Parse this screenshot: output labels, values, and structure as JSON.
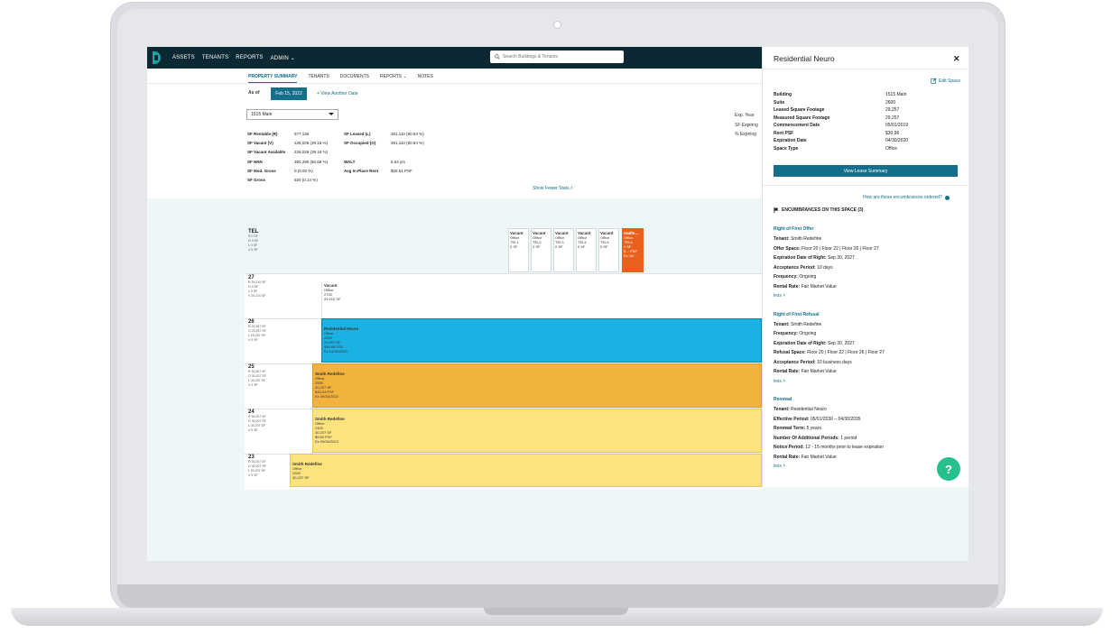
{
  "nav": {
    "items": [
      "ASSETS",
      "TENANTS",
      "REPORTS",
      "ADMIN"
    ],
    "search_placeholder": "Search Buildings & Tenants"
  },
  "tabs": [
    "PROPERTY SUMMARY",
    "TENANTS",
    "DOCUMENTS",
    "REPORTS",
    "NOTES"
  ],
  "asof": {
    "label": "As of",
    "date": "Feb 15, 2022",
    "view_another": "+ View Another Date"
  },
  "building_select": "1515 Main",
  "stats_left": [
    {
      "k": "SF Rentable (R)",
      "v": "577,136"
    },
    {
      "k": "SF Vacant (V)",
      "v": "226,026 (39.16 %)"
    },
    {
      "k": "SF Vacant Available",
      "v": "226,026 (39.16 %)"
    },
    {
      "k": "SF NNN",
      "v": "350,290 (60.69 %)"
    },
    {
      "k": "SF Mod. Gross",
      "v": "0 (0.00 %)"
    },
    {
      "k": "SF Gross",
      "v": "820 (0.14 %)"
    }
  ],
  "stats_right": [
    {
      "k": "SF Leased (L)",
      "v": "351,110 (60.84 %)"
    },
    {
      "k": "SF Occupied (O)",
      "v": "351,110 (60.84 %)"
    },
    {
      "k": "WALT",
      "v": "6.54 yrs"
    },
    {
      "k": "Avg In-Place Rent",
      "v": "$25.51 PSF"
    }
  ],
  "exp_labels": [
    "Exp. Year",
    "SF Expiring",
    "% Expiring"
  ],
  "show_fewer": "Show Fewer Stats",
  "tel": {
    "name": "TEL",
    "lines": [
      "R 0 SF",
      "O 0 SF",
      "L 0 SF",
      "V 0 SF"
    ],
    "suites": [
      {
        "t": "Vacant",
        "l": [
          "Office",
          "TEL1",
          "0 SF"
        ]
      },
      {
        "t": "Vacant",
        "l": [
          "Office",
          "TEL2",
          "0 SF"
        ]
      },
      {
        "t": "Vacant",
        "l": [
          "Office",
          "TEL3",
          "0 SF"
        ]
      },
      {
        "t": "Vacant",
        "l": [
          "Office",
          "TEL4",
          "0 SF"
        ]
      },
      {
        "t": "Vacant",
        "l": [
          "Office",
          "TEL5",
          "0 SF"
        ]
      },
      {
        "t": "Hadle...",
        "l": [
          "Office",
          "TEL6",
          "0 SF",
          "$ -- PSF",
          "Ex 10/..."
        ]
      }
    ]
  },
  "floors": [
    {
      "num": "27",
      "lines": [
        "R 29,210 SF",
        "O 0 SF",
        "L 0 SF",
        "V 29,210 SF"
      ],
      "block": {
        "t": "Vacant",
        "l": [
          "Office",
          "2700",
          "29,210 SF"
        ]
      }
    },
    {
      "num": "26",
      "lines": [
        "R 29,257 SF",
        "O 29,257 SF",
        "L 29,257 SF",
        "V 0 SF"
      ],
      "block": {
        "t": "Residential Neuro",
        "l": [
          "Office",
          "2600",
          "29,257 SF",
          "$30.96 PSF",
          "Ex 04/30/2020"
        ]
      }
    },
    {
      "num": "25",
      "lines": [
        "R 30,207 SF",
        "O 30,207 SF",
        "L 30,207 SF",
        "V 0 SF"
      ],
      "block": {
        "t": "Smith Redefine",
        "l": [
          "Office",
          "2500",
          "30,207 SF",
          "$30.03 PSF",
          "Ex 09/30/2022"
        ]
      }
    },
    {
      "num": "24",
      "lines": [
        "R 30,207 SF",
        "O 30,207 SF",
        "L 30,207 SF",
        "V 0 SF"
      ],
      "block": {
        "t": "Smith Redefine",
        "l": [
          "Office",
          "2400",
          "30,207 SF",
          "$9.83 PSF",
          "Ex 09/30/2023"
        ]
      }
    },
    {
      "num": "23",
      "lines": [
        "R 30,207 SF",
        "O 30,207 SF",
        "L 30,207 SF",
        "V 0 SF"
      ],
      "block": {
        "t": "Smith Redefine",
        "l": [
          "Office",
          "2300",
          "30,207 SF"
        ]
      }
    }
  ],
  "panel": {
    "title": "Residential Neuro",
    "edit": "Edit Space",
    "details": [
      {
        "k": "Building",
        "v": "1515 Main"
      },
      {
        "k": "Suite",
        "v": "2600"
      },
      {
        "k": "Leased Square Footage",
        "v": "29,257"
      },
      {
        "k": "Measured Square Footage",
        "v": "29,257"
      },
      {
        "k": "Commencement Date",
        "v": "05/01/2019"
      },
      {
        "k": "Rent PSF",
        "v": "$30.96"
      },
      {
        "k": "Expiration Date",
        "v": "04/30/2020"
      },
      {
        "k": "Space Type",
        "v": "Office"
      }
    ],
    "lease_btn": "View Lease Summary",
    "how_ordered": "How are these encumbrances ordered?",
    "enc_header": "ENCUMBRANCES ON THIS SPACE (3)",
    "less": "less",
    "encumbrances": [
      {
        "title": "Right of First Offer",
        "lines": [
          {
            "k": "Tenant:",
            "v": " Smith Redefine"
          },
          {
            "k": "Offer Space:",
            "v": " Floor 20 | Floor 22 | Floor 26 | Floor 27"
          },
          {
            "k": "Expiration Date of Right:",
            "v": " Sep 30, 2027"
          },
          {
            "k": "Acceptance Period:",
            "v": " 10 days"
          },
          {
            "k": "Frequency:",
            "v": " Ongoing"
          },
          {
            "k": "Rental Rate:",
            "v": " Fair Market Value"
          }
        ]
      },
      {
        "title": "Right of First Refusal",
        "lines": [
          {
            "k": "Tenant:",
            "v": " Smith Redefine"
          },
          {
            "k": "Frequency:",
            "v": " Ongoing"
          },
          {
            "k": "Expiration Date of Right:",
            "v": " Sep 30, 2027"
          },
          {
            "k": "Refusal Space:",
            "v": " Floor 20 | Floor 22 | Floor 26 | Floor 27"
          },
          {
            "k": "Acceptance Period:",
            "v": " 10 business days"
          },
          {
            "k": "Rental Rate:",
            "v": " Fair Market Value"
          }
        ]
      },
      {
        "title": "Renewal",
        "lines": [
          {
            "k": "Tenant:",
            "v": " Residential Neuro"
          },
          {
            "k": "Effective Period:",
            "v": " 05/01/2030 – 04/30/2035"
          },
          {
            "k": "Renewal Term:",
            "v": " 5 years"
          },
          {
            "k": "Number Of Additional Periods:",
            "v": " 1 period"
          },
          {
            "k": "Notice Period:",
            "v": " 12 - 15 months prior to lease expiration"
          },
          {
            "k": "Rental Rate:",
            "v": " Fair Market Value"
          }
        ]
      }
    ]
  },
  "help": "?",
  "colors": {
    "nav": "#0c2833",
    "accent": "#136f8b",
    "blue_block": "#1bb2e3",
    "orange_block": "#f2b33d",
    "yellow_block": "#fde37d",
    "tel6": "#e8601c",
    "help": "#27c08a"
  }
}
